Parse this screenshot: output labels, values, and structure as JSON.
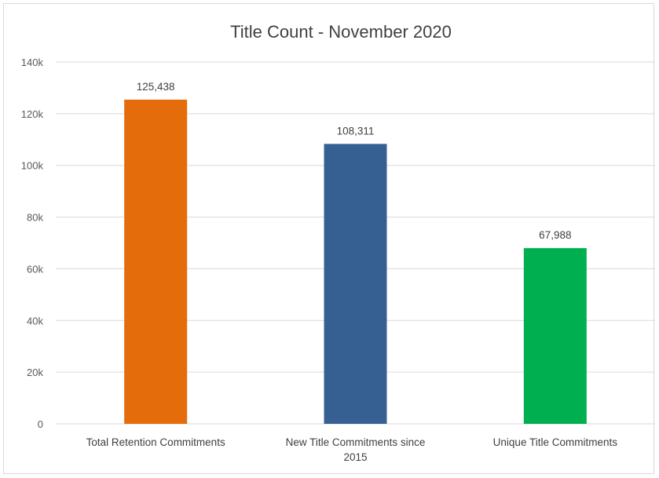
{
  "chart_data": {
    "type": "bar",
    "title": "Title Count - November 2020",
    "categories": [
      [
        "Total Retention Commitments"
      ],
      [
        "New Title Commitments since",
        "2015"
      ],
      [
        "Unique Title Commitments"
      ]
    ],
    "values": [
      125438,
      108311,
      67988
    ],
    "data_labels": [
      "125,438",
      "108,311",
      "67,988"
    ],
    "bar_colors": [
      "#E46C0A",
      "#376092",
      "#00B050"
    ],
    "ylim": [
      0,
      140000
    ],
    "y_ticks": [
      0,
      20000,
      40000,
      60000,
      80000,
      100000,
      120000,
      140000
    ],
    "y_tick_labels": [
      "0",
      "20k",
      "40k",
      "60k",
      "80k",
      "100k",
      "120k",
      "140k"
    ],
    "grid": true,
    "legend": "none",
    "xlabel": "",
    "ylabel": ""
  }
}
